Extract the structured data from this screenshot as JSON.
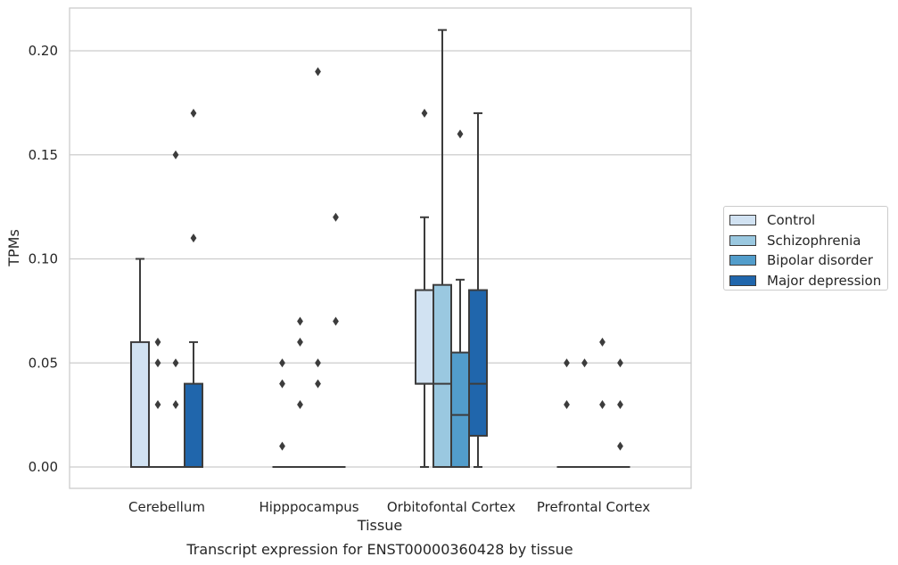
{
  "chart_data": {
    "type": "box",
    "title": "Transcript expression for ENST00000360428 by tissue",
    "xlabel": "Tissue",
    "ylabel": "TPMs",
    "ylim": [
      -0.01,
      0.22
    ],
    "yticks": [
      "0.00",
      "0.05",
      "0.10",
      "0.15",
      "0.20"
    ],
    "ytick_values": [
      0,
      0.05,
      0.1,
      0.15,
      0.2
    ],
    "grid": true,
    "legend_position": "right",
    "categories": [
      "Cerebellum",
      "Hipppocampus",
      "Orbitofontal Cortex",
      "Prefrontal Cortex"
    ],
    "series": [
      {
        "name": "Control",
        "color": "#d1e2f2",
        "boxes": [
          {
            "q1": 0,
            "median": 0,
            "q3": 0.06,
            "whisker_low": 0,
            "whisker_high": 0.1,
            "outliers": []
          },
          {
            "q1": 0,
            "median": 0,
            "q3": 0,
            "whisker_low": 0,
            "whisker_high": 0,
            "outliers": [
              0.01,
              0.04,
              0.05
            ]
          },
          {
            "q1": 0.04,
            "median": 0.04,
            "q3": 0.085,
            "whisker_low": 0,
            "whisker_high": 0.12,
            "outliers": [
              0.17
            ]
          },
          {
            "q1": 0,
            "median": 0,
            "q3": 0,
            "whisker_low": 0,
            "whisker_high": 0,
            "outliers": [
              0.03,
              0.05
            ]
          }
        ]
      },
      {
        "name": "Schizophrenia",
        "color": "#9ac8e0",
        "boxes": [
          {
            "q1": 0,
            "median": 0,
            "q3": 0,
            "whisker_low": 0,
            "whisker_high": 0,
            "outliers": [
              0.03,
              0.05,
              0.06
            ]
          },
          {
            "q1": 0,
            "median": 0,
            "q3": 0,
            "whisker_low": 0,
            "whisker_high": 0,
            "outliers": [
              0.03,
              0.06,
              0.07
            ]
          },
          {
            "q1": 0,
            "median": 0.04,
            "q3": 0.0875,
            "whisker_low": 0,
            "whisker_high": 0.21,
            "outliers": []
          },
          {
            "q1": 0,
            "median": 0,
            "q3": 0,
            "whisker_low": 0,
            "whisker_high": 0,
            "outliers": [
              0.05
            ]
          }
        ]
      },
      {
        "name": "Bipolar disorder",
        "color": "#529dcb",
        "boxes": [
          {
            "q1": 0,
            "median": 0,
            "q3": 0,
            "whisker_low": 0,
            "whisker_high": 0,
            "outliers": [
              0.03,
              0.05,
              0.15
            ]
          },
          {
            "q1": 0,
            "median": 0,
            "q3": 0,
            "whisker_low": 0,
            "whisker_high": 0,
            "outliers": [
              0.04,
              0.05,
              0.19
            ]
          },
          {
            "q1": 0,
            "median": 0.025,
            "q3": 0.055,
            "whisker_low": 0,
            "whisker_high": 0.09,
            "outliers": [
              0.16
            ]
          },
          {
            "q1": 0,
            "median": 0,
            "q3": 0,
            "whisker_low": 0,
            "whisker_high": 0,
            "outliers": [
              0.03,
              0.06
            ]
          }
        ]
      },
      {
        "name": "Major depression",
        "color": "#2066ac",
        "boxes": [
          {
            "q1": 0,
            "median": 0,
            "q3": 0.04,
            "whisker_low": 0,
            "whisker_high": 0.06,
            "outliers": [
              0.11,
              0.17
            ]
          },
          {
            "q1": 0,
            "median": 0,
            "q3": 0,
            "whisker_low": 0,
            "whisker_high": 0,
            "outliers": [
              0.07,
              0.12
            ]
          },
          {
            "q1": 0.015,
            "median": 0.04,
            "q3": 0.085,
            "whisker_low": 0,
            "whisker_high": 0.17,
            "outliers": []
          },
          {
            "q1": 0,
            "median": 0,
            "q3": 0,
            "whisker_low": 0,
            "whisker_high": 0,
            "outliers": [
              0.01,
              0.03,
              0.05
            ]
          }
        ]
      }
    ]
  }
}
